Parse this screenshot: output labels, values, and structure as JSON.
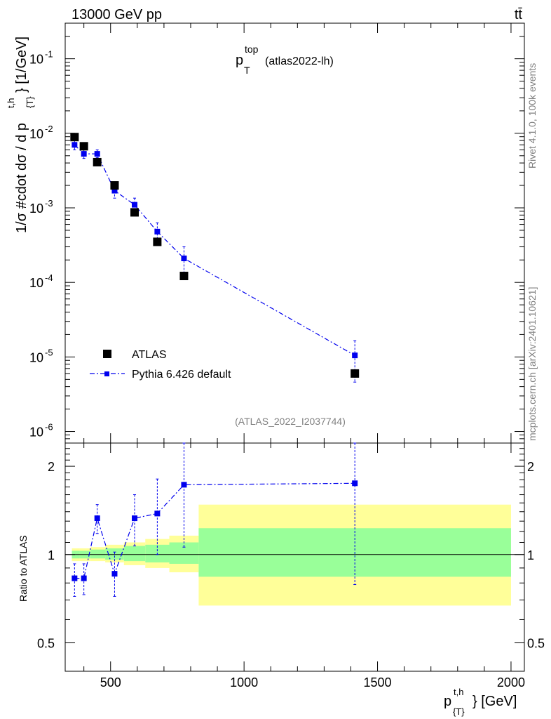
{
  "header": {
    "energy_label": "13000 GeV pp",
    "process_label": "tt̄",
    "title_main": "p",
    "title_sup": "top",
    "title_sub": "T",
    "title_tag": "(atlas2022-lh)",
    "analysis_id": "(ATLAS_2022_I2037744)"
  },
  "side_text": {
    "rivet": "Rivet 4.1.0,  100k events",
    "mcplots": "mcplots.cern.ch [arXiv:2401.10621]"
  },
  "axes": {
    "ylabel_main": "1/σ #cdot dσ / d p",
    "ylabel_sup": "t,h",
    "ylabel_sub": "{T}",
    "ylabel_unit": "} [1/GeV]",
    "ylabel_ratio": "Ratio to ATLAS",
    "xlabel_main": "p",
    "xlabel_sup": "t,h",
    "xlabel_sub": "{T}",
    "xlabel_unit": "} [GeV]"
  },
  "legend": {
    "data_label": "ATLAS",
    "mc_label": "Pythia 6.426 default"
  },
  "colors": {
    "data": "#000000",
    "mc": "#0000ee",
    "band_inner": "#99ff99",
    "band_outer": "#ffff99"
  },
  "chart_data": {
    "type": "scatter",
    "x_range": [
      330,
      2050
    ],
    "x_ticks": [
      500,
      1000,
      1500,
      2000
    ],
    "main": {
      "yscale": "log",
      "y_range": [
        7e-07,
        0.3
      ],
      "y_ticks": [
        {
          "exp": "-6",
          "value": 1e-06
        },
        {
          "exp": "-5",
          "value": 1e-05
        },
        {
          "exp": "-4",
          "value": 0.0001
        },
        {
          "exp": "-3",
          "value": 0.001
        },
        {
          "exp": "-2",
          "value": 0.01
        },
        {
          "exp": "-1",
          "value": 0.1
        }
      ],
      "data": {
        "name": "ATLAS",
        "points": [
          {
            "x": 365,
            "y": 0.0089
          },
          {
            "x": 400,
            "y": 0.0067
          },
          {
            "x": 450,
            "y": 0.0041
          },
          {
            "x": 515,
            "y": 0.002
          },
          {
            "x": 590,
            "y": 0.00087
          },
          {
            "x": 675,
            "y": 0.00035
          },
          {
            "x": 775,
            "y": 0.000122
          },
          {
            "x": 1415,
            "y": 6e-06
          }
        ]
      },
      "mc": {
        "name": "Pythia 6.426 default",
        "points": [
          {
            "x": 365,
            "y": 0.007,
            "lo": 0.006,
            "hi": 0.008
          },
          {
            "x": 400,
            "y": 0.0053,
            "lo": 0.0046,
            "hi": 0.006
          },
          {
            "x": 450,
            "y": 0.0053,
            "lo": 0.0047,
            "hi": 0.006
          },
          {
            "x": 515,
            "y": 0.0017,
            "lo": 0.00135,
            "hi": 0.0021
          },
          {
            "x": 590,
            "y": 0.0011,
            "lo": 0.00088,
            "hi": 0.00135
          },
          {
            "x": 675,
            "y": 0.00048,
            "lo": 0.00035,
            "hi": 0.00063
          },
          {
            "x": 775,
            "y": 0.00021,
            "lo": 0.00013,
            "hi": 0.0003
          },
          {
            "x": 1415,
            "y": 1.05e-05,
            "lo": 4.6e-06,
            "hi": 1.65e-05
          }
        ]
      }
    },
    "ratio": {
      "yscale": "log",
      "y_range": [
        0.4,
        2.4
      ],
      "y_ticks": [
        {
          "label": "0.5",
          "value": 0.5
        },
        {
          "label": "1",
          "value": 1
        },
        {
          "label": "2",
          "value": 2
        }
      ],
      "bands": [
        {
          "xlo": 355,
          "xhi": 385,
          "inner": [
            0.97,
            1.03
          ],
          "outer": [
            0.95,
            1.05
          ]
        },
        {
          "xlo": 385,
          "xhi": 425,
          "inner": [
            0.97,
            1.03
          ],
          "outer": [
            0.95,
            1.05
          ]
        },
        {
          "xlo": 425,
          "xhi": 480,
          "inner": [
            0.97,
            1.04
          ],
          "outer": [
            0.95,
            1.06
          ]
        },
        {
          "xlo": 480,
          "xhi": 550,
          "inner": [
            0.96,
            1.05
          ],
          "outer": [
            0.94,
            1.08
          ]
        },
        {
          "xlo": 550,
          "xhi": 630,
          "inner": [
            0.95,
            1.07
          ],
          "outer": [
            0.92,
            1.1
          ]
        },
        {
          "xlo": 630,
          "xhi": 720,
          "inner": [
            0.94,
            1.08
          ],
          "outer": [
            0.9,
            1.13
          ]
        },
        {
          "xlo": 720,
          "xhi": 830,
          "inner": [
            0.93,
            1.1
          ],
          "outer": [
            0.87,
            1.16
          ]
        },
        {
          "xlo": 830,
          "xhi": 2000,
          "inner": [
            0.84,
            1.23
          ],
          "outer": [
            0.67,
            1.48
          ]
        }
      ],
      "mc": [
        {
          "x": 365,
          "y": 0.83,
          "lo": 0.72,
          "hi": 0.93
        },
        {
          "x": 400,
          "y": 0.83,
          "lo": 0.73,
          "hi": 0.93
        },
        {
          "x": 450,
          "y": 1.33,
          "lo": 1.18,
          "hi": 1.48
        },
        {
          "x": 515,
          "y": 0.86,
          "lo": 0.72,
          "hi": 1.02
        },
        {
          "x": 590,
          "y": 1.33,
          "lo": 1.07,
          "hi": 1.6
        },
        {
          "x": 675,
          "y": 1.38,
          "lo": 1.0,
          "hi": 1.81
        },
        {
          "x": 775,
          "y": 1.73,
          "lo": 1.06,
          "hi": 2.45
        },
        {
          "x": 1415,
          "y": 1.75,
          "lo": 0.79,
          "hi": 2.45
        }
      ]
    }
  }
}
